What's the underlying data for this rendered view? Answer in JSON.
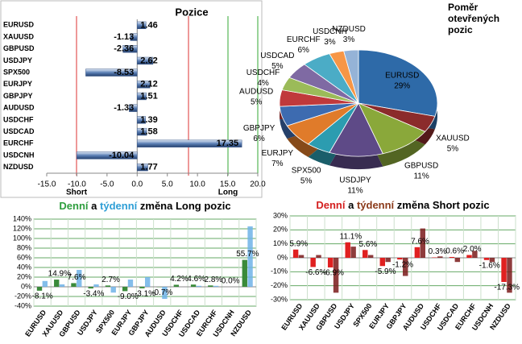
{
  "chart_data": [
    {
      "type": "hbar",
      "title": "Pozice",
      "categories": [
        "EURUSD",
        "XAUUSD",
        "GBPUSD",
        "USDJPY",
        "SPX500",
        "EURJPY",
        "GBPJPY",
        "AUDUSD",
        "USDCHF",
        "USDCAD",
        "EURCHF",
        "USDCNH",
        "NZDUSD"
      ],
      "values": [
        1.46,
        -1.13,
        -2.36,
        2.62,
        -8.53,
        2.12,
        1.51,
        -1.33,
        1.39,
        1.58,
        17.35,
        -10.04,
        1.77
      ],
      "color": "#5b7fb5",
      "xlim": [
        -15,
        20
      ],
      "xticks": [
        {
          "value": -15,
          "label": "-15.0"
        },
        {
          "value": -10,
          "label": "-10.0"
        },
        {
          "value": -5,
          "label": "-5.0"
        },
        {
          "value": 0,
          "label": "0.0"
        },
        {
          "value": 5,
          "label": "5.0"
        },
        {
          "value": 10,
          "label": "10.0"
        },
        {
          "value": 15,
          "label": "15.0"
        },
        {
          "value": 20,
          "label": "20.0"
        }
      ],
      "annotations": [
        "Short",
        "Long"
      ]
    },
    {
      "type": "pie",
      "title": "Poměr otevřených pozic",
      "categories": [
        "EURUSD",
        "XAUUSD",
        "GBPUSD",
        "USDJPY",
        "SPX500",
        "EURJPY",
        "GBPJPY",
        "AUDUSD",
        "USDCHF",
        "USDCAD",
        "EURCHF",
        "USDCNH",
        "NZDUSD"
      ],
      "values": [
        29,
        5,
        11,
        11,
        5,
        7,
        6,
        5,
        4,
        5,
        6,
        3,
        3
      ],
      "value_labels": [
        "29%",
        "5%",
        "11%",
        "11%",
        "5%",
        "7%",
        "6%",
        "5%",
        "4%",
        "5%",
        "6%",
        "3%",
        "3%"
      ],
      "colors": [
        "#2e6aa8",
        "#8b2b2b",
        "#8aa83a",
        "#5e4a87",
        "#2c9cb0",
        "#e07b2a",
        "#3d6bb0",
        "#c0393b",
        "#9bbb59",
        "#7f6aa3",
        "#4bacc6",
        "#f79646",
        "#95b3d7"
      ]
    },
    {
      "type": "bar",
      "title_parts": [
        {
          "text": "Denní",
          "color": "#2e9e3e"
        },
        {
          "text": "a",
          "color": "#000000"
        },
        {
          "text": "týdenní",
          "color": "#2e9ed6"
        },
        {
          "text": "změna Long pozic",
          "color": "#000000"
        }
      ],
      "categories": [
        "EURUSD",
        "XAUUSD",
        "GBPUSD",
        "USDJPY",
        "SPX500",
        "EURJPY",
        "GBPJPY",
        "AUDUSD",
        "USDCHF",
        "USDCAD",
        "EURCHF",
        "USDCNH",
        "NZDUSD"
      ],
      "series": [
        {
          "color": "#3a8a3a",
          "values": [
            -8.1,
            14.9,
            7.6,
            -3.4,
            2.7,
            -9.0,
            -3.1,
            -0.7,
            4.2,
            4.6,
            2.8,
            0.0,
            55.7
          ],
          "value_labels": [
            "-8.1%",
            "14.9%",
            "7.6%",
            "-3.4%",
            "2.7%",
            "-9.0%",
            "-3.1%",
            "-0.7%",
            "4.2%",
            "4.6%",
            "2.8%",
            "0.0%",
            "55.7%"
          ]
        },
        {
          "color": "#6fb3e8",
          "values": [
            12,
            5,
            35,
            5,
            -12,
            15,
            20,
            -25,
            0,
            2,
            2,
            0,
            125
          ]
        }
      ],
      "ylim": [
        -40,
        140
      ],
      "yticks": [
        {
          "value": -40,
          "label": "-40%"
        },
        {
          "value": -20,
          "label": "-20%"
        },
        {
          "value": 0,
          "label": "0%"
        },
        {
          "value": 20,
          "label": "20%"
        },
        {
          "value": 40,
          "label": "40%"
        },
        {
          "value": 60,
          "label": "60%"
        },
        {
          "value": 80,
          "label": "80%"
        },
        {
          "value": 100,
          "label": "100%"
        },
        {
          "value": 120,
          "label": "120%"
        },
        {
          "value": 140,
          "label": "140%"
        }
      ],
      "grid": true
    },
    {
      "type": "bar",
      "title_parts": [
        {
          "text": "Denní",
          "color": "#d42020"
        },
        {
          "text": "a",
          "color": "#000000"
        },
        {
          "text": "týdenní",
          "color": "#8b3a1a"
        },
        {
          "text": "změna Short pozic",
          "color": "#000000"
        }
      ],
      "categories": [
        "EURUSD",
        "XAUUSD",
        "GBPUSD",
        "USDJPY",
        "SPX500",
        "EURJPY",
        "GBPJPY",
        "AUDUSD",
        "USDCHF",
        "USDCAD",
        "EURCHF",
        "USDCNH",
        "NZDUSD"
      ],
      "series": [
        {
          "color": "#e02020",
          "values": [
            5.9,
            -6.6,
            -6.9,
            11.1,
            5.6,
            -5.9,
            -1.2,
            7.6,
            0.3,
            0.6,
            2.0,
            -1.6,
            -17.3
          ],
          "value_labels": [
            "5.9%",
            "-6.6%",
            "-6.9%",
            "11.1%",
            "5.6%",
            "-5.9%",
            "-1.2%",
            "7.6%",
            "0.3%",
            "0.6%",
            "2.0%",
            "-1.6%",
            "-17.3%"
          ]
        },
        {
          "color": "#7a1a1a",
          "values": [
            2,
            2,
            -25,
            8,
            2,
            -3,
            -13,
            21,
            1,
            -3,
            5,
            -3,
            -25
          ]
        }
      ],
      "ylim": [
        -30,
        30
      ],
      "yticks": [
        {
          "value": -30,
          "label": "-30%"
        },
        {
          "value": -20,
          "label": "-20%"
        },
        {
          "value": -10,
          "label": "-10%"
        },
        {
          "value": 0,
          "label": "0%"
        },
        {
          "value": 10,
          "label": "10%"
        },
        {
          "value": 20,
          "label": "20%"
        },
        {
          "value": 30,
          "label": "30%"
        }
      ],
      "grid": true
    }
  ]
}
